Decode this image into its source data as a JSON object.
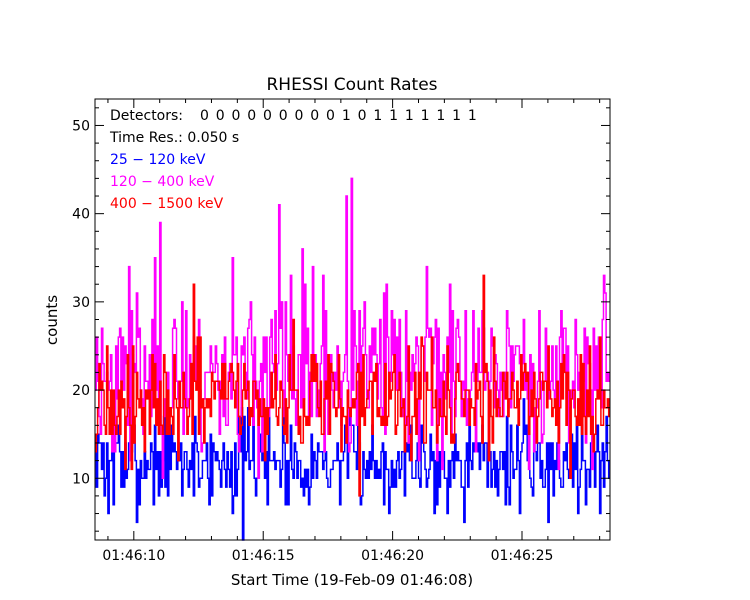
{
  "chart_data": {
    "type": "line",
    "title": "RHESSI Count Rates",
    "xlabel": "Start Time (19-Feb-09 01:46:08)",
    "ylabel": "counts",
    "x_tick_labels": [
      "01:46:10",
      "01:46:15",
      "01:46:20",
      "01:46:25"
    ],
    "x_tick_seconds": [
      10,
      15,
      20,
      25
    ],
    "xlim_seconds": [
      8.5,
      28.4
    ],
    "ylim": [
      3,
      53
    ],
    "y_ticks": [
      10,
      20,
      30,
      40,
      50
    ],
    "time_resolution_s": 0.05,
    "grid": false,
    "legend_position": "top-left",
    "annotations": {
      "detectors_label": "Detectors:",
      "detectors_values": "0 0 0 0 0 0 0 0 0 1 0 1 1 1 1 1 1 1",
      "time_res": "Time Res.: 0.050 s"
    },
    "series": [
      {
        "name": "25 - 120 keV",
        "color": "#0000ff",
        "mean": 12,
        "spread": 2.6,
        "min": 3,
        "max": 19,
        "seed": 7,
        "peaks": [
          {
            "t": 14.2,
            "v": 3
          },
          {
            "t": 10.1,
            "v": 5
          },
          {
            "t": 21.6,
            "v": 6
          },
          {
            "t": 26.0,
            "v": 5
          },
          {
            "t": 9.0,
            "v": 6
          }
        ]
      },
      {
        "name": "120 - 400 keV",
        "color": "#ff00ff",
        "mean": 22,
        "spread": 4.6,
        "min": 10,
        "max": 44,
        "seed": 23,
        "peaks": [
          {
            "t": 18.4,
            "v": 44
          },
          {
            "t": 18.2,
            "v": 42
          },
          {
            "t": 15.6,
            "v": 41
          },
          {
            "t": 11.0,
            "v": 39
          },
          {
            "t": 16.5,
            "v": 36
          },
          {
            "t": 9.8,
            "v": 34
          },
          {
            "t": 13.8,
            "v": 35
          },
          {
            "t": 21.3,
            "v": 34
          }
        ]
      },
      {
        "name": "400 - 1500 keV",
        "color": "#ff0000",
        "mean": 19,
        "spread": 3.2,
        "min": 8,
        "max": 33,
        "seed": 91,
        "peaks": [
          {
            "t": 23.5,
            "v": 33
          },
          {
            "t": 12.3,
            "v": 32
          },
          {
            "t": 18.7,
            "v": 8
          }
        ]
      }
    ]
  }
}
